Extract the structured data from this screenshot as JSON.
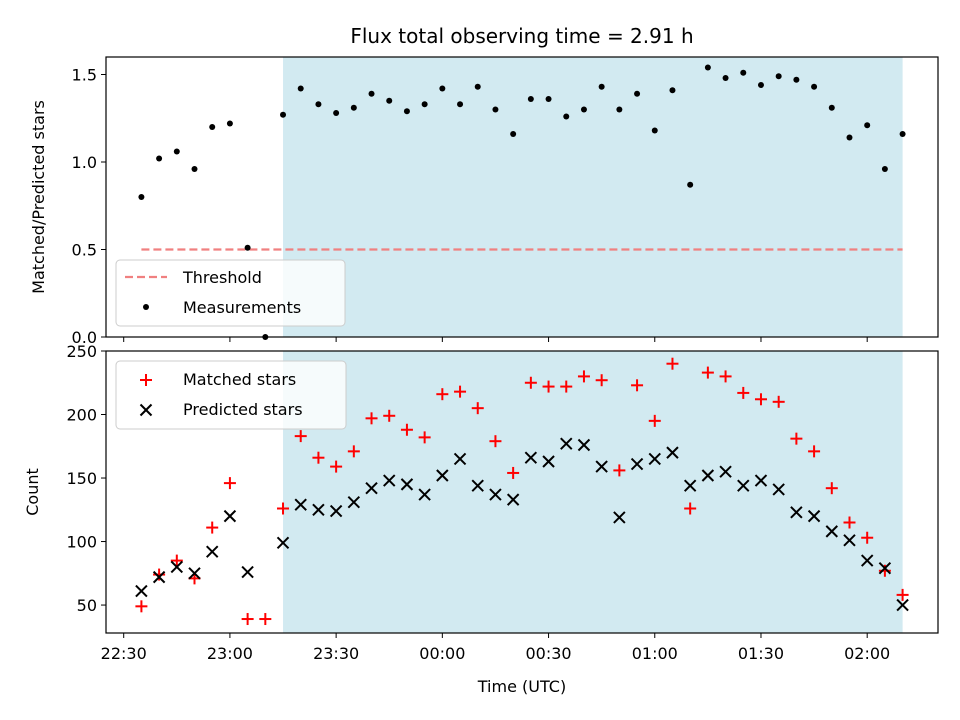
{
  "chart_data": [
    {
      "type": "scatter",
      "title": "Flux total observing time = 2.91 h",
      "xlabel": "",
      "ylabel": "Matched/Predicted stars",
      "ylim": [
        0,
        1.6
      ],
      "yticks": [
        "0.0",
        "0.5",
        "1.0",
        "1.5"
      ],
      "ytick_values": [
        0,
        0.5,
        1.0,
        1.5
      ],
      "highlight_span": {
        "start": "23:15",
        "end": "02:10",
        "color": "#add8e6"
      },
      "threshold": {
        "name": "Threshold",
        "value": 0.5,
        "x_start": "22:35",
        "x_end": "02:10",
        "color": "#f08080"
      },
      "legend": {
        "position": "lower-left",
        "entries": [
          "Threshold",
          "Measurements"
        ]
      },
      "series": [
        {
          "name": "Measurements",
          "x": [
            "22:35",
            "22:40",
            "22:45",
            "22:50",
            "22:55",
            "23:00",
            "23:05",
            "23:10",
            "23:15",
            "23:20",
            "23:25",
            "23:30",
            "23:35",
            "23:40",
            "23:45",
            "23:50",
            "23:55",
            "00:00",
            "00:05",
            "00:10",
            "00:15",
            "00:20",
            "00:25",
            "00:30",
            "00:35",
            "00:40",
            "00:45",
            "00:50",
            "00:55",
            "01:00",
            "01:05",
            "01:10",
            "01:15",
            "01:20",
            "01:25",
            "01:30",
            "01:35",
            "01:40",
            "01:45",
            "01:50",
            "01:55",
            "02:00",
            "02:05",
            "02:10"
          ],
          "y": [
            0.8,
            1.02,
            1.06,
            0.96,
            1.2,
            1.22,
            0.51,
            0.0,
            1.27,
            1.42,
            1.33,
            1.28,
            1.31,
            1.39,
            1.35,
            1.29,
            1.33,
            1.42,
            1.33,
            1.43,
            1.3,
            1.16,
            1.36,
            1.36,
            1.26,
            1.3,
            1.43,
            1.3,
            1.39,
            1.18,
            1.41,
            0.87,
            1.54,
            1.48,
            1.51,
            1.44,
            1.49,
            1.47,
            1.43,
            1.31,
            1.14,
            1.21,
            0.96,
            1.16
          ]
        }
      ]
    },
    {
      "type": "scatter",
      "xlabel": "Time (UTC)",
      "ylabel": "Count",
      "ylim": [
        28,
        250
      ],
      "yticks": [
        "50",
        "100",
        "150",
        "200",
        "250"
      ],
      "ytick_values": [
        50,
        100,
        150,
        200,
        250
      ],
      "xticks": [
        "22:30",
        "23:00",
        "23:30",
        "00:00",
        "00:30",
        "01:00",
        "01:30",
        "02:00"
      ],
      "xlim": [
        "22:25",
        "02:20"
      ],
      "highlight_span": {
        "start": "23:15",
        "end": "02:10",
        "color": "#add8e6"
      },
      "legend": {
        "position": "upper-left",
        "entries": [
          "Matched stars",
          "Predicted stars"
        ]
      },
      "series": [
        {
          "name": "Matched stars",
          "marker": "+",
          "color": "#ff0000",
          "x": [
            "22:35",
            "22:40",
            "22:45",
            "22:50",
            "22:55",
            "23:00",
            "23:05",
            "23:10",
            "23:15",
            "23:20",
            "23:25",
            "23:30",
            "23:35",
            "23:40",
            "23:45",
            "23:50",
            "23:55",
            "00:00",
            "00:05",
            "00:10",
            "00:15",
            "00:20",
            "00:25",
            "00:30",
            "00:35",
            "00:40",
            "00:45",
            "00:50",
            "00:55",
            "01:00",
            "01:05",
            "01:10",
            "01:15",
            "01:20",
            "01:25",
            "01:30",
            "01:35",
            "01:40",
            "01:45",
            "01:50",
            "01:55",
            "02:00",
            "02:05",
            "02:10"
          ],
          "y": [
            49,
            74,
            85,
            71,
            111,
            146,
            39,
            39,
            126,
            183,
            166,
            159,
            171,
            197,
            199,
            188,
            182,
            216,
            218,
            205,
            179,
            154,
            225,
            222,
            222,
            230,
            227,
            156,
            223,
            195,
            240,
            126,
            233,
            230,
            217,
            212,
            210,
            181,
            171,
            142,
            115,
            103,
            77,
            58
          ]
        },
        {
          "name": "Predicted stars",
          "marker": "x",
          "color": "#000000",
          "x": [
            "22:35",
            "22:40",
            "22:45",
            "22:50",
            "22:55",
            "23:00",
            "23:05",
            "23:15",
            "23:20",
            "23:25",
            "23:30",
            "23:35",
            "23:40",
            "23:45",
            "23:50",
            "23:55",
            "00:00",
            "00:05",
            "00:10",
            "00:15",
            "00:20",
            "00:25",
            "00:30",
            "00:35",
            "00:40",
            "00:45",
            "00:50",
            "00:55",
            "01:00",
            "01:05",
            "01:10",
            "01:15",
            "01:20",
            "01:25",
            "01:30",
            "01:35",
            "01:40",
            "01:45",
            "01:50",
            "01:55",
            "02:00",
            "02:05",
            "02:10"
          ],
          "y": [
            61,
            72,
            80,
            75,
            92,
            120,
            76,
            99,
            129,
            125,
            124,
            131,
            142,
            148,
            145,
            137,
            152,
            165,
            144,
            137,
            133,
            166,
            163,
            177,
            176,
            159,
            119,
            161,
            165,
            170,
            144,
            152,
            155,
            144,
            148,
            141,
            123,
            120,
            108,
            101,
            85,
            79,
            50
          ]
        }
      ]
    }
  ]
}
